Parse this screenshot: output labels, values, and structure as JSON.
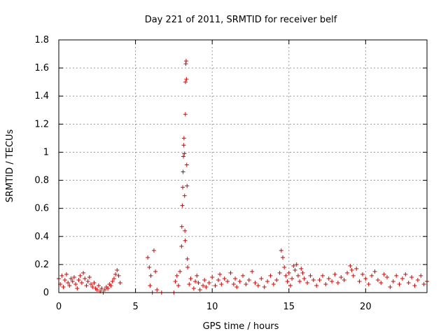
{
  "chart_data": {
    "type": "scatter",
    "title": "Day 221 of 2011, SRMTID for receiver belf",
    "xlabel": "GPS time / hours",
    "ylabel": "SRMTID / TECUs",
    "xlim": [
      0,
      24
    ],
    "ylim": [
      0,
      1.8
    ],
    "xticks": [
      0,
      5,
      10,
      15,
      20
    ],
    "yticks": [
      0,
      0.2,
      0.4,
      0.6,
      0.8,
      1,
      1.2,
      1.4,
      1.6,
      1.8
    ],
    "xtick_labels": [
      "0",
      "5",
      "10",
      "15",
      "20"
    ],
    "ytick_labels": [
      "0",
      "0.2",
      "0.4",
      "0.6",
      "0.8",
      "1",
      "1.2",
      "1.4",
      "1.6",
      "1.8"
    ],
    "grid": true,
    "marker": "+",
    "series": [
      {
        "name": "SRMTID",
        "color": "#e00000",
        "points": [
          [
            0.0,
            0.1
          ],
          [
            0.1,
            0.06
          ],
          [
            0.2,
            0.12
          ],
          [
            0.3,
            0.04
          ],
          [
            0.4,
            0.09
          ],
          [
            0.5,
            0.13
          ],
          [
            0.6,
            0.07
          ],
          [
            0.7,
            0.05
          ],
          [
            0.8,
            0.1
          ],
          [
            0.9,
            0.08
          ],
          [
            1.0,
            0.11
          ],
          [
            1.1,
            0.06
          ],
          [
            1.2,
            0.03
          ],
          [
            1.3,
            0.09
          ],
          [
            1.4,
            0.12
          ],
          [
            1.5,
            0.07
          ],
          [
            1.6,
            0.14
          ],
          [
            1.7,
            0.1
          ],
          [
            1.8,
            0.05
          ],
          [
            1.9,
            0.08
          ],
          [
            2.0,
            0.11
          ],
          [
            2.1,
            0.06
          ],
          [
            2.2,
            0.04
          ],
          [
            2.3,
            0.07
          ],
          [
            2.4,
            0.03
          ],
          [
            2.5,
            0.02
          ],
          [
            2.6,
            0.05
          ],
          [
            2.7,
            0.01
          ],
          [
            2.8,
            0.03
          ],
          [
            2.9,
            0.0
          ],
          [
            3.0,
            0.02
          ],
          [
            3.1,
            0.04
          ],
          [
            3.2,
            0.03
          ],
          [
            3.3,
            0.06
          ],
          [
            3.4,
            0.05
          ],
          [
            3.5,
            0.08
          ],
          [
            3.6,
            0.1
          ],
          [
            3.7,
            0.13
          ],
          [
            3.8,
            0.16
          ],
          [
            3.9,
            0.12
          ],
          [
            4.0,
            0.07
          ],
          [
            5.8,
            0.25
          ],
          [
            5.9,
            0.18
          ],
          [
            5.95,
            0.05
          ],
          [
            6.0,
            0.12
          ],
          [
            6.1,
            0.0
          ],
          [
            6.2,
            0.3
          ],
          [
            6.3,
            0.15
          ],
          [
            6.4,
            0.02
          ],
          [
            6.7,
            0.0
          ],
          [
            7.5,
            0.0
          ],
          [
            7.6,
            0.08
          ],
          [
            7.7,
            0.12
          ],
          [
            7.8,
            0.05
          ],
          [
            7.9,
            0.15
          ],
          [
            8.0,
            0.33
          ],
          [
            8.02,
            0.47
          ],
          [
            8.05,
            0.62
          ],
          [
            8.08,
            0.75
          ],
          [
            8.1,
            0.86
          ],
          [
            8.12,
            0.97
          ],
          [
            8.14,
            1.05
          ],
          [
            8.16,
            1.1
          ],
          [
            8.18,
            0.99
          ],
          [
            8.2,
            0.69
          ],
          [
            8.22,
            0.44
          ],
          [
            8.24,
            0.37
          ],
          [
            8.25,
            1.27
          ],
          [
            8.26,
            1.5
          ],
          [
            8.28,
            1.63
          ],
          [
            8.3,
            1.65
          ],
          [
            8.32,
            1.52
          ],
          [
            8.34,
            0.91
          ],
          [
            8.36,
            0.76
          ],
          [
            8.38,
            0.24
          ],
          [
            8.4,
            0.18
          ],
          [
            8.5,
            0.06
          ],
          [
            8.6,
            0.1
          ],
          [
            8.8,
            0.03
          ],
          [
            8.9,
            0.08
          ],
          [
            9.0,
            0.12
          ],
          [
            9.1,
            0.07
          ],
          [
            9.2,
            0.02
          ],
          [
            9.4,
            0.05
          ],
          [
            9.5,
            0.09
          ],
          [
            9.6,
            0.04
          ],
          [
            9.8,
            0.07
          ],
          [
            10.0,
            0.11
          ],
          [
            10.2,
            0.05
          ],
          [
            10.4,
            0.09
          ],
          [
            10.5,
            0.13
          ],
          [
            10.6,
            0.06
          ],
          [
            10.8,
            0.1
          ],
          [
            11.0,
            0.08
          ],
          [
            11.2,
            0.14
          ],
          [
            11.4,
            0.06
          ],
          [
            11.5,
            0.1
          ],
          [
            11.6,
            0.04
          ],
          [
            11.8,
            0.08
          ],
          [
            12.0,
            0.12
          ],
          [
            12.2,
            0.06
          ],
          [
            12.4,
            0.09
          ],
          [
            12.6,
            0.15
          ],
          [
            12.8,
            0.07
          ],
          [
            13.0,
            0.05
          ],
          [
            13.2,
            0.1
          ],
          [
            13.4,
            0.04
          ],
          [
            13.6,
            0.08
          ],
          [
            13.8,
            0.12
          ],
          [
            14.0,
            0.06
          ],
          [
            14.2,
            0.09
          ],
          [
            14.4,
            0.14
          ],
          [
            14.5,
            0.3
          ],
          [
            14.6,
            0.25
          ],
          [
            14.7,
            0.18
          ],
          [
            14.8,
            0.12
          ],
          [
            14.9,
            0.08
          ],
          [
            15.0,
            0.14
          ],
          [
            15.1,
            0.05
          ],
          [
            15.2,
            0.1
          ],
          [
            15.3,
            0.19
          ],
          [
            15.4,
            0.16
          ],
          [
            15.5,
            0.2
          ],
          [
            15.6,
            0.12
          ],
          [
            15.7,
            0.08
          ],
          [
            15.8,
            0.17
          ],
          [
            15.9,
            0.14
          ],
          [
            16.0,
            0.1
          ],
          [
            16.2,
            0.07
          ],
          [
            16.4,
            0.12
          ],
          [
            16.6,
            0.09
          ],
          [
            16.8,
            0.05
          ],
          [
            17.0,
            0.09
          ],
          [
            17.2,
            0.12
          ],
          [
            17.4,
            0.06
          ],
          [
            17.6,
            0.1
          ],
          [
            17.8,
            0.08
          ],
          [
            18.0,
            0.13
          ],
          [
            18.2,
            0.07
          ],
          [
            18.4,
            0.11
          ],
          [
            18.6,
            0.09
          ],
          [
            18.8,
            0.14
          ],
          [
            19.0,
            0.19
          ],
          [
            19.1,
            0.16
          ],
          [
            19.2,
            0.12
          ],
          [
            19.4,
            0.17
          ],
          [
            19.6,
            0.08
          ],
          [
            19.8,
            0.13
          ],
          [
            20.0,
            0.1
          ],
          [
            20.2,
            0.06
          ],
          [
            20.4,
            0.12
          ],
          [
            20.6,
            0.15
          ],
          [
            20.8,
            0.09
          ],
          [
            21.0,
            0.07
          ],
          [
            21.2,
            0.13
          ],
          [
            21.4,
            0.11
          ],
          [
            21.6,
            0.04
          ],
          [
            21.8,
            0.08
          ],
          [
            22.0,
            0.12
          ],
          [
            22.2,
            0.06
          ],
          [
            22.4,
            0.1
          ],
          [
            22.6,
            0.13
          ],
          [
            22.8,
            0.07
          ],
          [
            23.0,
            0.11
          ],
          [
            23.2,
            0.05
          ],
          [
            23.4,
            0.09
          ],
          [
            23.6,
            0.12
          ],
          [
            23.8,
            0.06
          ],
          [
            24.0,
            0.08
          ]
        ]
      }
    ]
  }
}
